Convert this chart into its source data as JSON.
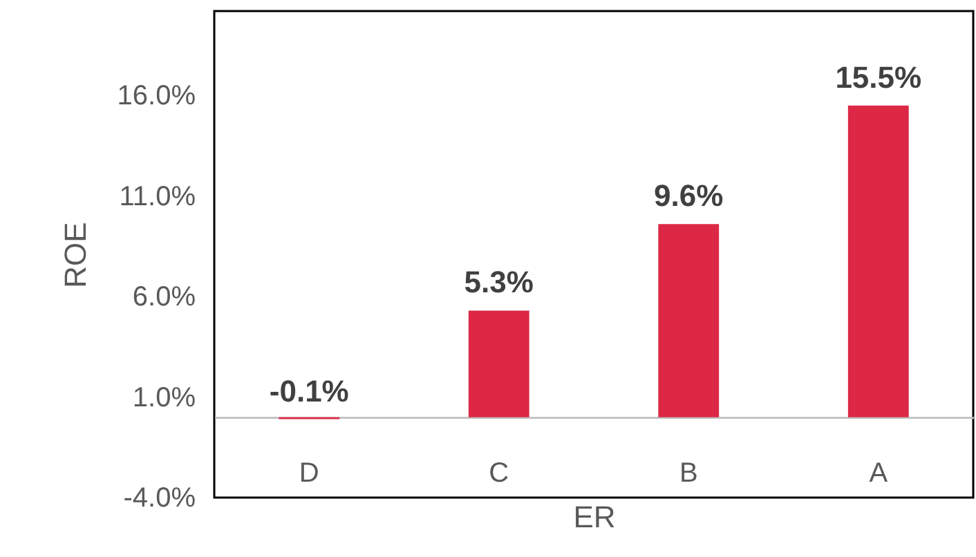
{
  "chart_data": {
    "type": "bar",
    "xlabel": "ER",
    "ylabel": "ROE",
    "categories": [
      "D",
      "C",
      "B",
      "A"
    ],
    "values": [
      -0.1,
      5.3,
      9.6,
      15.5
    ],
    "value_labels": [
      "-0.1%",
      "5.3%",
      "9.6%",
      "15.5%"
    ],
    "color": "#dc2845",
    "ylim": [
      -4,
      20.2
    ],
    "yticks": [
      {
        "value": -4,
        "label": "-4.0%"
      },
      {
        "value": 1,
        "label": "1.0%"
      },
      {
        "value": 6,
        "label": "6.0%"
      },
      {
        "value": 11,
        "label": "11.0%"
      },
      {
        "value": 16,
        "label": "16.0%"
      }
    ],
    "grid": false
  }
}
